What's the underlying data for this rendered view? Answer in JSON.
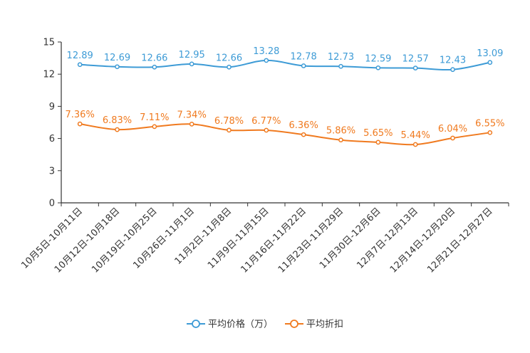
{
  "chart_data": {
    "type": "line",
    "title": "",
    "xlabel": "",
    "ylabel": "",
    "ylim": [
      0,
      15
    ],
    "yticks": [
      0,
      3,
      6,
      9,
      12,
      15
    ],
    "grid": false,
    "legend_position": "bottom-center",
    "categories": [
      "10月5日-10月11日",
      "10月12日-10月18日",
      "10月19日-10月25日",
      "10月26日-11月1日",
      "11月2日-11月8日",
      "11月9日-11月15日",
      "11月16日-11月22日",
      "11月23日-11月29日",
      "11月30日-12月6日",
      "12月7日-12月13日",
      "12月14日-12月20日",
      "12月21日-12月27日"
    ],
    "series": [
      {
        "name": "平均价格（万）",
        "color": "#3d9bd6",
        "values": [
          12.89,
          12.69,
          12.66,
          12.95,
          12.66,
          13.28,
          12.78,
          12.73,
          12.59,
          12.57,
          12.43,
          13.09
        ],
        "labels": [
          "12.89",
          "12.69",
          "12.66",
          "12.95",
          "12.66",
          "13.28",
          "12.78",
          "12.73",
          "12.59",
          "12.57",
          "12.43",
          "13.09"
        ]
      },
      {
        "name": "平均折扣",
        "color": "#f07a1f",
        "values": [
          7.36,
          6.83,
          7.11,
          7.34,
          6.78,
          6.77,
          6.36,
          5.86,
          5.65,
          5.44,
          6.04,
          6.55
        ],
        "labels": [
          "7.36%",
          "6.83%",
          "7.11%",
          "7.34%",
          "6.78%",
          "6.77%",
          "6.36%",
          "5.86%",
          "5.65%",
          "5.44%",
          "6.04%",
          "6.55%"
        ]
      }
    ]
  }
}
